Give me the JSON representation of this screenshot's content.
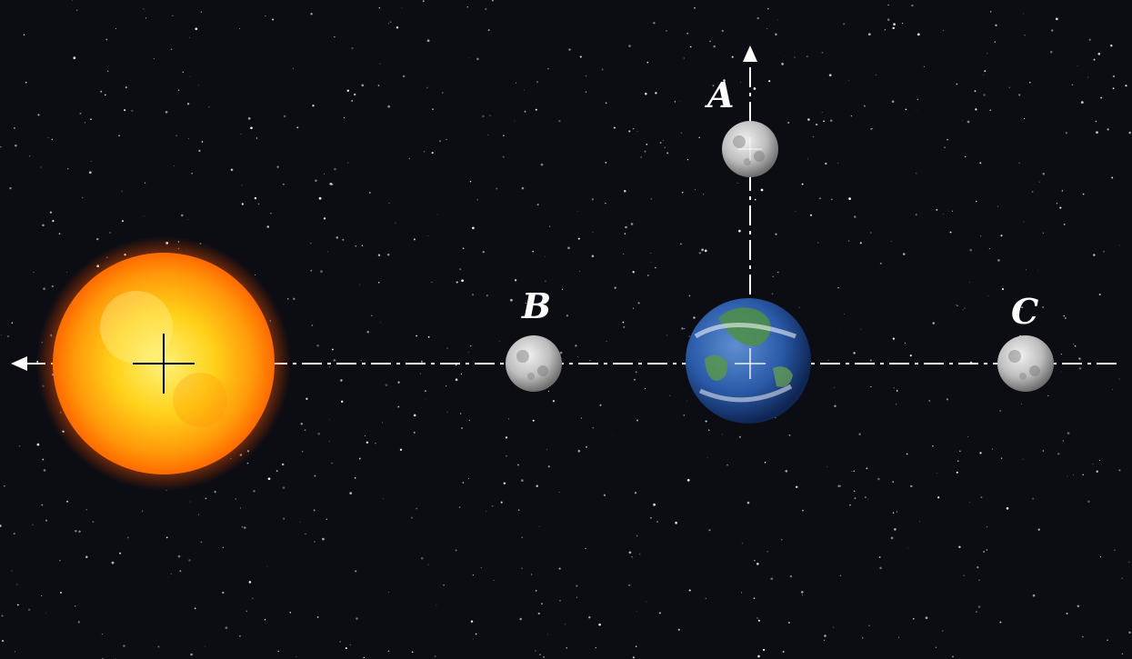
{
  "diagram": {
    "background_color": "#0c0d12",
    "line_color": "#ffffff",
    "bodies": {
      "sun": {
        "icon": "sun-icon",
        "color": "#ffb300"
      },
      "earth": {
        "icon": "earth-icon",
        "color": "#2a5aa8"
      }
    },
    "moons": [
      {
        "label": "A"
      },
      {
        "label": "B"
      },
      {
        "label": "C"
      }
    ]
  }
}
